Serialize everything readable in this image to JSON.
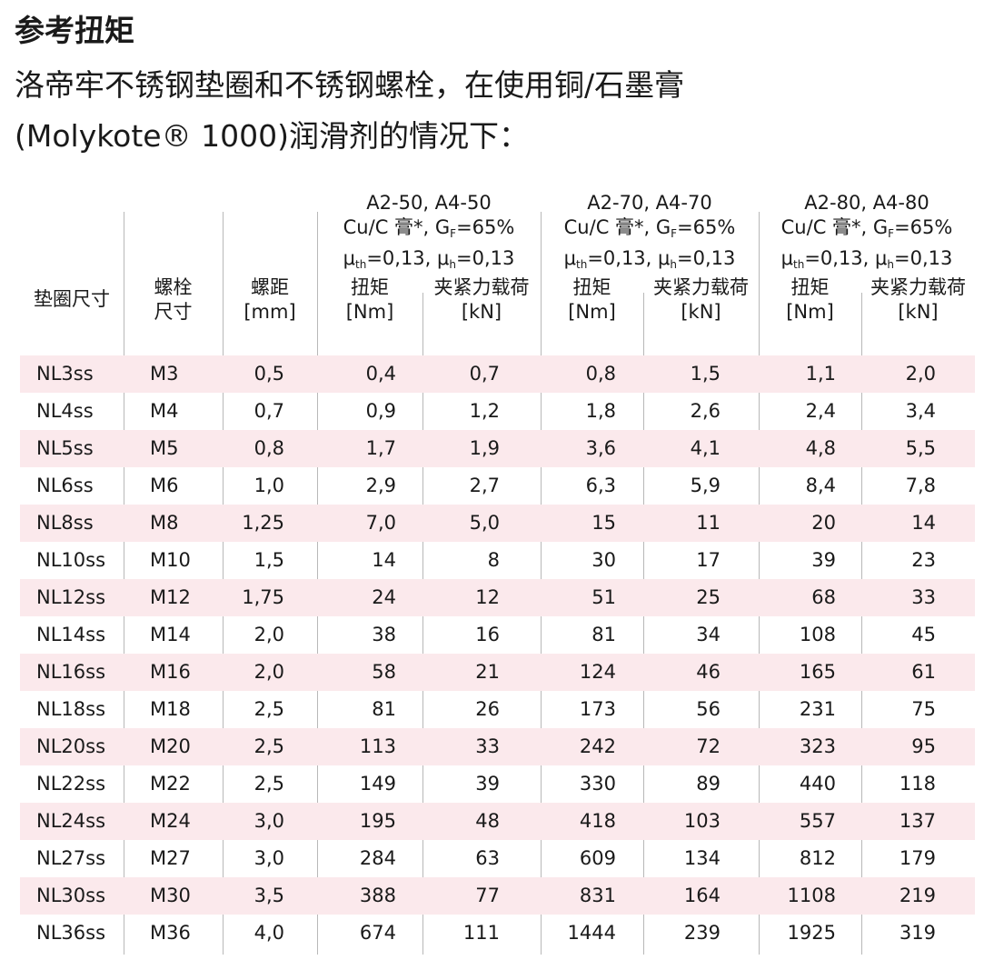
{
  "title": "参考扭矩",
  "subtitle_line1": "洛帝牢不锈钢垫圈和不锈钢螺栓，在使用铜/石墨膏",
  "subtitle_line2": "(Molykote® 1000)润滑剂的情况下：",
  "colors": {
    "row_highlight": "#fbe9ec",
    "divider": "#b8b8b8"
  },
  "headers": {
    "washer": "垫圈尺寸",
    "bolt_1": "螺栓",
    "bolt_2": "尺寸",
    "pitch_1": "螺距",
    "pitch_2": "[mm]",
    "groups": [
      {
        "grade": "A2-50, A4-50",
        "paste": "Cu/C 膏*, G",
        "paste_sub": "F",
        "paste_end": "=65%",
        "mu1": "μ",
        "mu1_sub": "th",
        "mu_mid": "=0,13, μ",
        "mu2_sub": "h",
        "mu_end": "=0,13"
      },
      {
        "grade": "A2-70, A4-70",
        "paste": "Cu/C 膏*, G",
        "paste_sub": "F",
        "paste_end": "=65%",
        "mu1": "μ",
        "mu1_sub": "th",
        "mu_mid": "=0,13, μ",
        "mu2_sub": "h",
        "mu_end": "=0,13"
      },
      {
        "grade": "A2-80, A4-80",
        "paste": "Cu/C 膏*, G",
        "paste_sub": "F",
        "paste_end": "=65%",
        "mu1": "μ",
        "mu1_sub": "th",
        "mu_mid": "=0,13, μ",
        "mu2_sub": "h",
        "mu_end": "=0,13"
      }
    ],
    "torque_1": "扭矩",
    "torque_2": "[Nm]",
    "clamp_1": "夹紧力载荷",
    "clamp_2": "[kN]"
  },
  "rows": [
    [
      "NL3ss",
      "M3",
      "0,5",
      "0,4",
      "0,7",
      "0,8",
      "1,5",
      "1,1",
      "2,0"
    ],
    [
      "NL4ss",
      "M4",
      "0,7",
      "0,9",
      "1,2",
      "1,8",
      "2,6",
      "2,4",
      "3,4"
    ],
    [
      "NL5ss",
      "M5",
      "0,8",
      "1,7",
      "1,9",
      "3,6",
      "4,1",
      "4,8",
      "5,5"
    ],
    [
      "NL6ss",
      "M6",
      "1,0",
      "2,9",
      "2,7",
      "6,3",
      "5,9",
      "8,4",
      "7,8"
    ],
    [
      "NL8ss",
      "M8",
      "1,25",
      "7,0",
      "5,0",
      "15",
      "11",
      "20",
      "14"
    ],
    [
      "NL10ss",
      "M10",
      "1,5",
      "14",
      "8",
      "30",
      "17",
      "39",
      "23"
    ],
    [
      "NL12ss",
      "M12",
      "1,75",
      "24",
      "12",
      "51",
      "25",
      "68",
      "33"
    ],
    [
      "NL14ss",
      "M14",
      "2,0",
      "38",
      "16",
      "81",
      "34",
      "108",
      "45"
    ],
    [
      "NL16ss",
      "M16",
      "2,0",
      "58",
      "21",
      "124",
      "46",
      "165",
      "61"
    ],
    [
      "NL18ss",
      "M18",
      "2,5",
      "81",
      "26",
      "173",
      "56",
      "231",
      "75"
    ],
    [
      "NL20ss",
      "M20",
      "2,5",
      "113",
      "33",
      "242",
      "72",
      "323",
      "95"
    ],
    [
      "NL22ss",
      "M22",
      "2,5",
      "149",
      "39",
      "330",
      "89",
      "440",
      "118"
    ],
    [
      "NL24ss",
      "M24",
      "3,0",
      "195",
      "48",
      "418",
      "103",
      "557",
      "137"
    ],
    [
      "NL27ss",
      "M27",
      "3,0",
      "284",
      "63",
      "609",
      "134",
      "812",
      "179"
    ],
    [
      "NL30ss",
      "M30",
      "3,5",
      "388",
      "77",
      "831",
      "164",
      "1108",
      "219"
    ],
    [
      "NL36ss",
      "M36",
      "4,0",
      "674",
      "111",
      "1444",
      "239",
      "1925",
      "319"
    ]
  ]
}
